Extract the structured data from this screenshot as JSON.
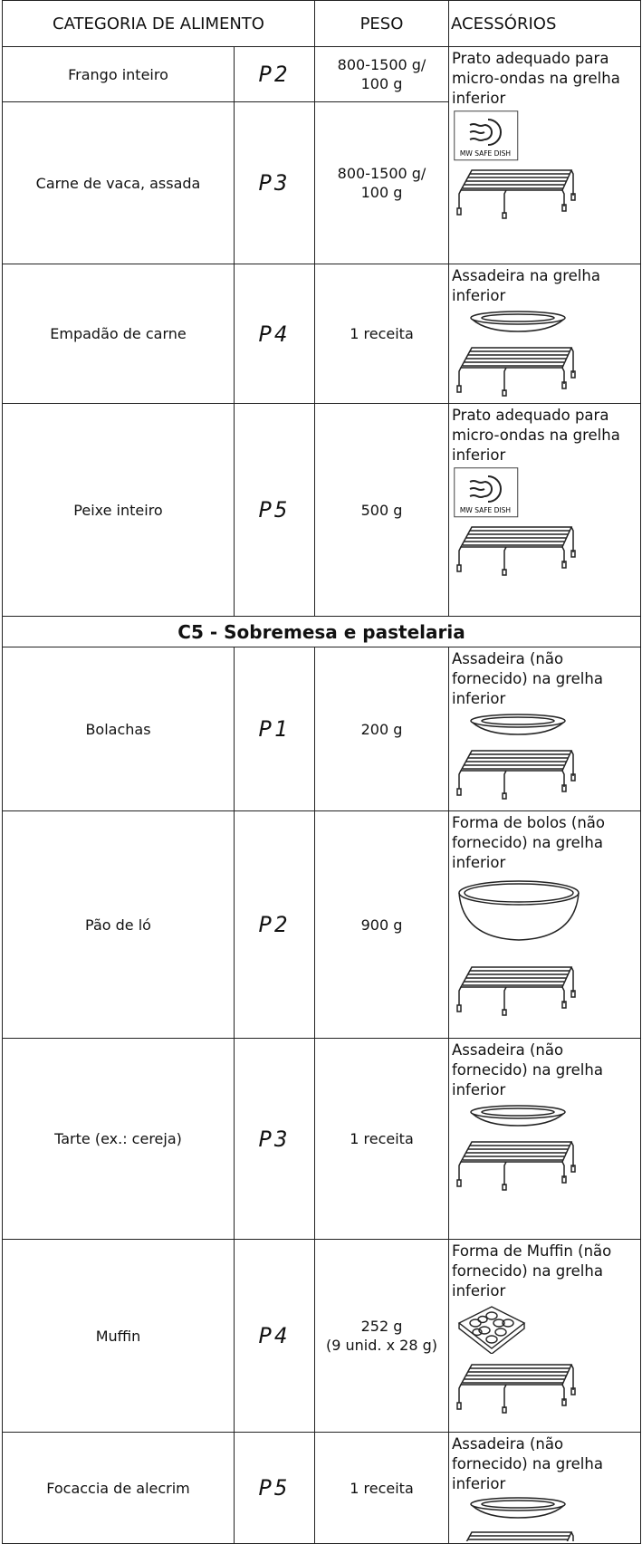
{
  "header": {
    "category": "CATEGORIA DE ALIMENTO",
    "weight": "PESO",
    "accessories": "ACESSÓRIOS"
  },
  "icon_text": "MW SAFE DISH",
  "rows": [
    {
      "food": "Frango inteiro",
      "program": "P2",
      "weight": "800-1500 g/\n100 g"
    },
    {
      "food": "Carne de vaca, assada",
      "program": "P3",
      "weight": "800-1500 g/\n100 g",
      "accessory": "Prato adequado para micro-ondas na grelha inferior"
    },
    {
      "food": "Empadão de carne",
      "program": "P4",
      "weight": "1 receita",
      "accessory": "Assadeira na grelha inferior"
    },
    {
      "food": "Peixe inteiro",
      "program": "P5",
      "weight": "500 g",
      "accessory": "Prato adequado para micro-ondas na grelha inferior"
    }
  ],
  "section": {
    "title": "C5 - Sobremesa e pastelaria",
    "rows": [
      {
        "food": "Bolachas",
        "program": "P1",
        "weight": "200 g",
        "accessory": "Assadeira (não fornecido) na grelha inferior"
      },
      {
        "food": "Pão de ló",
        "program": "P2",
        "weight": "900 g",
        "accessory": "Forma de bolos (não fornecido) na grelha inferior"
      },
      {
        "food": "Tarte (ex.: cereja)",
        "program": "P3",
        "weight": "1 receita",
        "accessory": "Assadeira (não fornecido) na grelha inferior"
      },
      {
        "food": "Muffin",
        "program": "P4",
        "weight": "252 g\n(9 unid. x 28 g)",
        "accessory": "Forma de Muffin (não fornecido) na grelha inferior"
      },
      {
        "food": "Focaccia de alecrim",
        "program": "P5",
        "weight": "1 receita",
        "accessory": "Assadeira (não fornecido) na grelha inferior"
      }
    ]
  }
}
